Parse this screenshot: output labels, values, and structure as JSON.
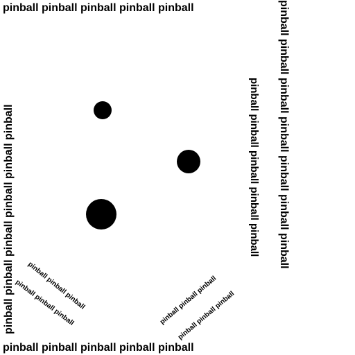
{
  "walls": {
    "top": "pinball pinball pinball pinball pinball",
    "bottom": "pinball pinball pinball pinball pinball",
    "left": "pinball pinball pinball pinball pinball pinball",
    "right_outer": "pinball pinball pinball pinball pinball pinball pinball",
    "right_inner": "pinball pinball pinball pinball pinball"
  },
  "flippers": [
    "pinball pinball pinball",
    "pinball pinball pinball",
    "pinball pinball pinball",
    "pinball pinball pinball"
  ]
}
